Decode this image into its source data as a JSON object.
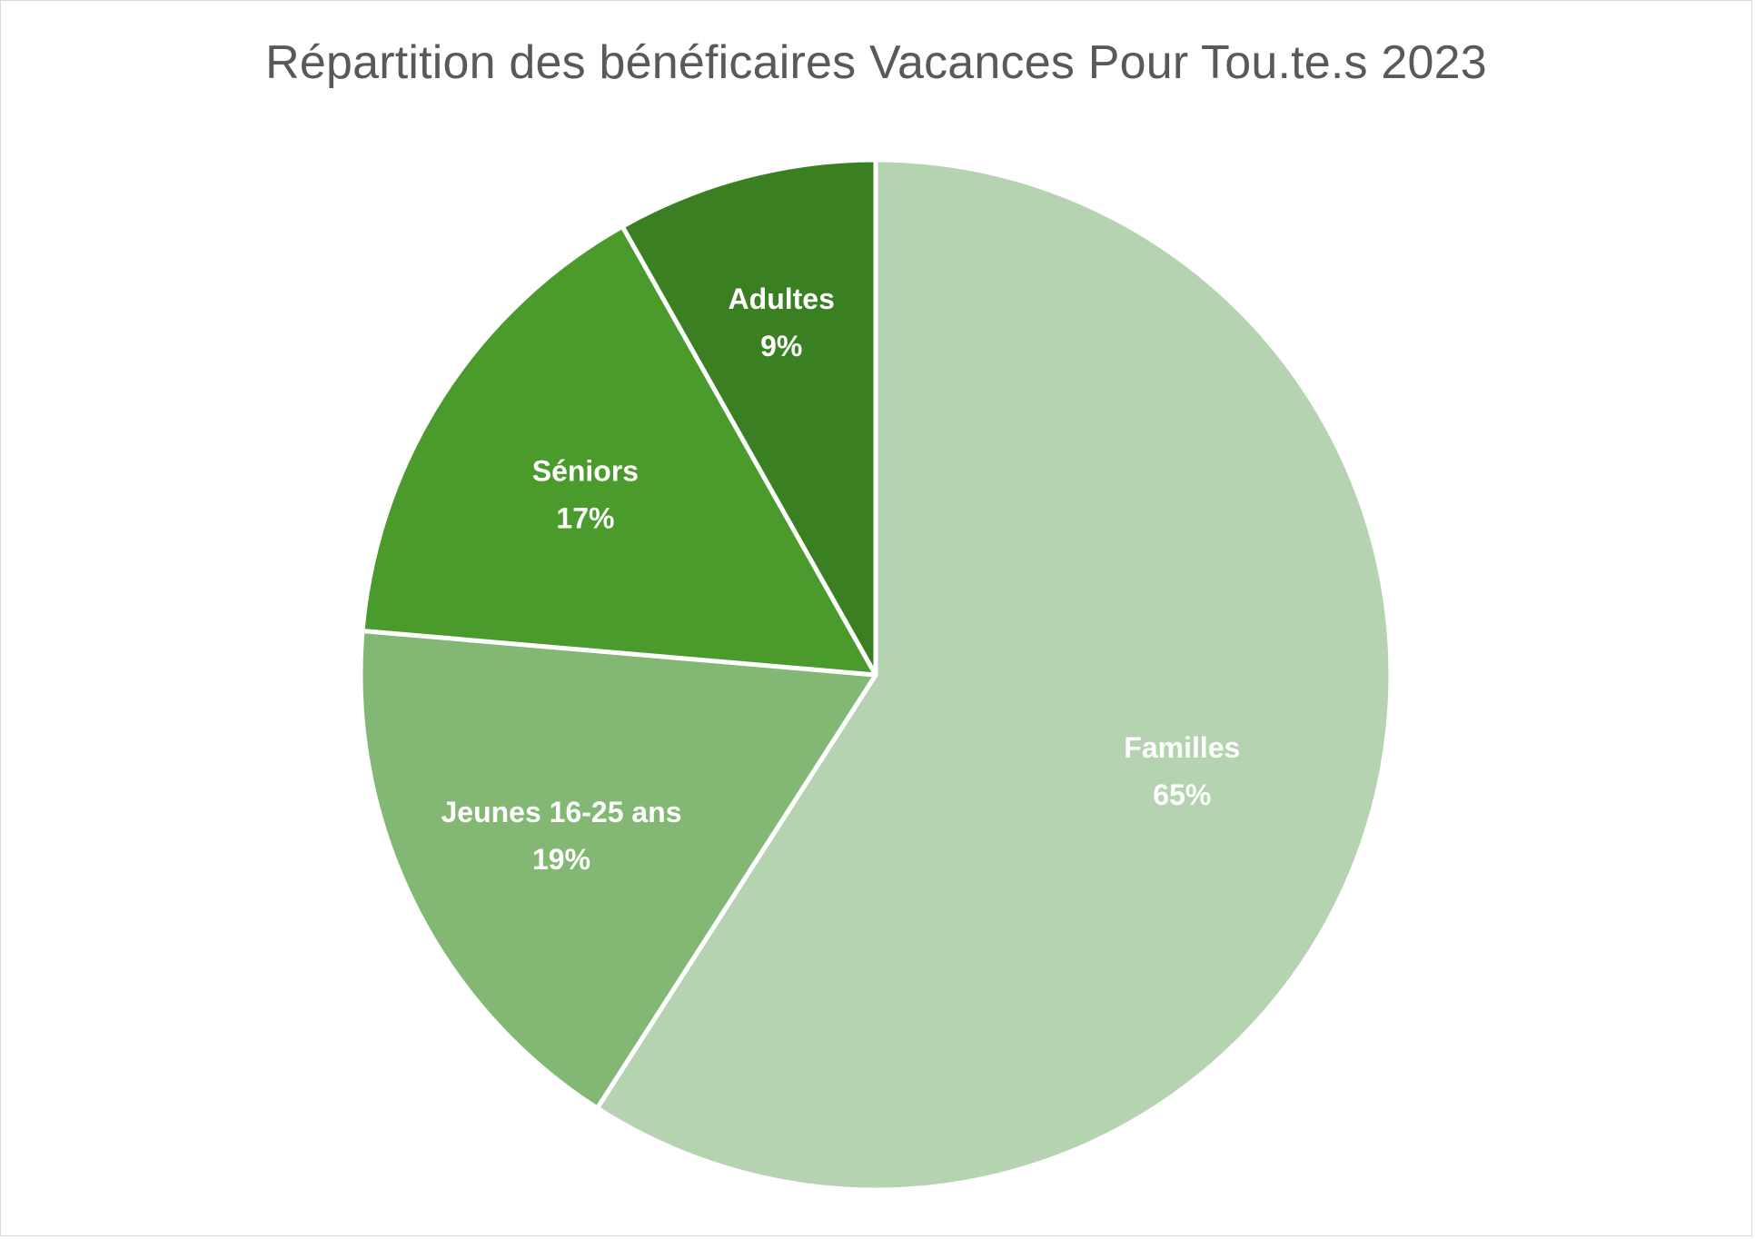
{
  "chart_data": {
    "type": "pie",
    "title": "Répartition des bénéficaires Vacances Pour Tou.te.s 2023",
    "start_angle_deg": 0,
    "direction": "clockwise",
    "slices": [
      {
        "label": "Familles",
        "value": 65,
        "value_label": "65%",
        "color": "#b5d3b0"
      },
      {
        "label": "Jeunes 16-25 ans",
        "value": 19,
        "value_label": "19%",
        "color": "#82b873"
      },
      {
        "label": "Séniors",
        "value": 17,
        "value_label": "17%",
        "color": "#4a9b2c"
      },
      {
        "label": "Adultes",
        "value": 9,
        "value_label": "9%",
        "color": "#3a8022"
      }
    ],
    "legend": "none",
    "separator_color": "#ffffff"
  }
}
